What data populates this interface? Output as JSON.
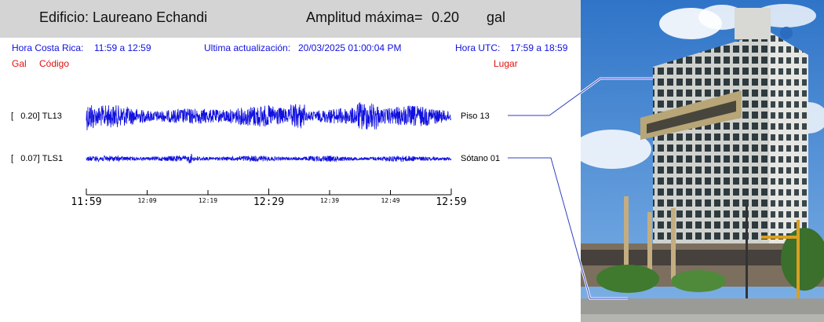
{
  "header": {
    "building": "Edificio: Laureano Echandi",
    "amplitude_label": "Amplitud máxima=",
    "amplitude_value": "0.20",
    "amplitude_unit": "gal"
  },
  "info": {
    "cr_label": "Hora Costa Rica:",
    "cr_range": "11:59 a 12:59",
    "update_label": "Ultima actualización:",
    "update_value": "20/03/2025 01:00:04 PM",
    "utc_label": "Hora UTC:",
    "utc_range": "17:59 a 18:59"
  },
  "columns": {
    "gal": "Gal",
    "code": "Código",
    "place": "Lugar"
  },
  "colors": {
    "trace": "#1010e0",
    "header_bg": "#d4d4d4",
    "label_red": "#e01010",
    "info_blue": "#1010e0"
  },
  "photo": {
    "icon": "building-photo"
  },
  "chart_data": {
    "type": "line",
    "x_range_minutes": [
      0,
      60
    ],
    "x_tick_labels": [
      {
        "minute": 0,
        "label": "11:59",
        "major": true
      },
      {
        "minute": 10,
        "label": "12:09",
        "major": false
      },
      {
        "minute": 20,
        "label": "12:19",
        "major": false
      },
      {
        "minute": 30,
        "label": "12:29",
        "major": true
      },
      {
        "minute": 40,
        "label": "12:39",
        "major": false
      },
      {
        "minute": 50,
        "label": "12:49",
        "major": false
      },
      {
        "minute": 60,
        "label": "12:59",
        "major": true
      }
    ],
    "series": [
      {
        "name": "TL13",
        "amplitude": "0.20",
        "place": "Piso 13",
        "max_gal": 0.2
      },
      {
        "name": "TLS1",
        "amplitude": "0.07",
        "place": "Sótano 01",
        "max_gal": 0.07
      }
    ]
  }
}
